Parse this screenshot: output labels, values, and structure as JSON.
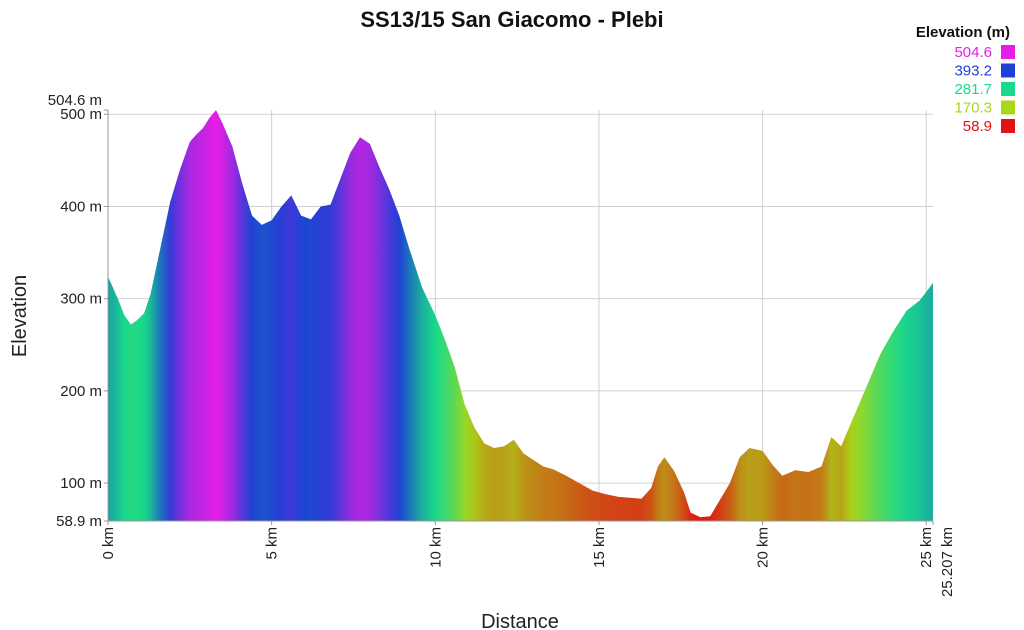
{
  "chart_data": {
    "type": "area",
    "title": "SS13/15 San Giacomo - Plebi",
    "xlabel": "Distance",
    "ylabel": "Elevation",
    "xlim": [
      0,
      25.207
    ],
    "ylim": [
      58.9,
      504.6
    ],
    "x_ticks": [
      {
        "value": 0,
        "label": "0 km"
      },
      {
        "value": 5,
        "label": "5 km"
      },
      {
        "value": 10,
        "label": "10 km"
      },
      {
        "value": 15,
        "label": "15 km"
      },
      {
        "value": 20,
        "label": "20 km"
      },
      {
        "value": 25,
        "label": "25 km"
      },
      {
        "value": 25.207,
        "label": "25.207 km"
      }
    ],
    "y_ticks": [
      {
        "value": 58.9,
        "label": "58.9 m"
      },
      {
        "value": 100,
        "label": "100 m"
      },
      {
        "value": 200,
        "label": "200 m"
      },
      {
        "value": 300,
        "label": "300 m"
      },
      {
        "value": 400,
        "label": "400 m"
      },
      {
        "value": 500,
        "label": "500 m"
      },
      {
        "value": 504.6,
        "label": "504.6 m"
      }
    ],
    "grid": true,
    "legend": {
      "title": "Elevation (m)",
      "placement": "top-right",
      "entries": [
        {
          "label": "504.6",
          "value": 504.6,
          "color": "#e61ee6"
        },
        {
          "label": "393.2",
          "value": 393.2,
          "color": "#1f3fd6"
        },
        {
          "label": "281.7",
          "value": 281.7,
          "color": "#19d98a"
        },
        {
          "label": "170.3",
          "value": 170.3,
          "color": "#a8d81a"
        },
        {
          "label": "58.9",
          "value": 58.9,
          "color": "#e01414"
        }
      ]
    },
    "series": [
      {
        "x": [
          0,
          0.3,
          0.5,
          0.7,
          0.9,
          1.1,
          1.3,
          1.6,
          1.9,
          2.2,
          2.5,
          2.7,
          2.9,
          3.1,
          3.3,
          3.5,
          3.8,
          4.1,
          4.4,
          4.7,
          5.0,
          5.3,
          5.6,
          5.9,
          6.2,
          6.5,
          6.8,
          7.1,
          7.4,
          7.7,
          8.0,
          8.3,
          8.6,
          8.9,
          9.2,
          9.6,
          10.0,
          10.3,
          10.6,
          10.9,
          11.2,
          11.5,
          11.8,
          12.1,
          12.4,
          12.7,
          13.0,
          13.3,
          13.6,
          14.0,
          14.4,
          14.8,
          15.2,
          15.6,
          16.0,
          16.3,
          16.6,
          16.8,
          17.0,
          17.3,
          17.6,
          17.8,
          18.1,
          18.4,
          18.7,
          19.0,
          19.3,
          19.6,
          20.0,
          20.3,
          20.6,
          21.0,
          21.4,
          21.8,
          22.1,
          22.4,
          22.7,
          23.0,
          23.3,
          23.6,
          24.0,
          24.4,
          24.8,
          25.207
        ],
        "y": [
          324,
          300,
          282,
          272,
          277,
          284,
          305,
          355,
          405,
          440,
          470,
          478,
          485,
          496,
          504.6,
          490,
          465,
          425,
          390,
          380,
          385,
          400,
          412,
          390,
          386,
          400,
          402,
          430,
          458,
          475,
          468,
          442,
          418,
          390,
          355,
          312,
          282,
          255,
          225,
          185,
          160,
          143,
          138,
          140,
          147,
          132,
          125,
          118,
          115,
          108,
          100,
          92,
          88,
          85,
          84,
          83,
          95,
          118,
          128,
          113,
          90,
          68,
          63,
          64,
          82,
          100,
          128,
          138,
          135,
          120,
          108,
          114,
          112,
          118,
          150,
          140,
          165,
          190,
          215,
          240,
          265,
          287,
          298,
          317
        ]
      }
    ]
  }
}
